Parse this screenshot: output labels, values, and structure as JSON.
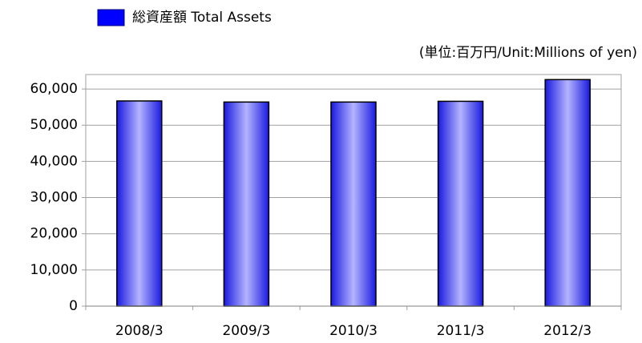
{
  "chart_data": {
    "type": "bar",
    "unit_label": "(単位:百万円/Unit:Millions of yen)",
    "categories": [
      "2008/3",
      "2009/3",
      "2010/3",
      "2011/3",
      "2012/3"
    ],
    "series": [
      {
        "name": "総資産額 Total Assets",
        "color": "#0000ff",
        "values": [
          56700,
          56400,
          56400,
          56600,
          62600
        ]
      }
    ],
    "ylim": [
      0,
      64000
    ],
    "yticks": [
      0,
      {
        "value": 10000,
        "label": "10,000"
      },
      {
        "value": 20000,
        "label": "20,000"
      },
      {
        "value": 30000,
        "label": "30,000"
      },
      {
        "value": 40000,
        "label": "40,000"
      },
      {
        "value": 50000,
        "label": "50,000"
      },
      {
        "value": 60000,
        "label": "60,000"
      }
    ],
    "grid": true,
    "legend": "top-left"
  }
}
